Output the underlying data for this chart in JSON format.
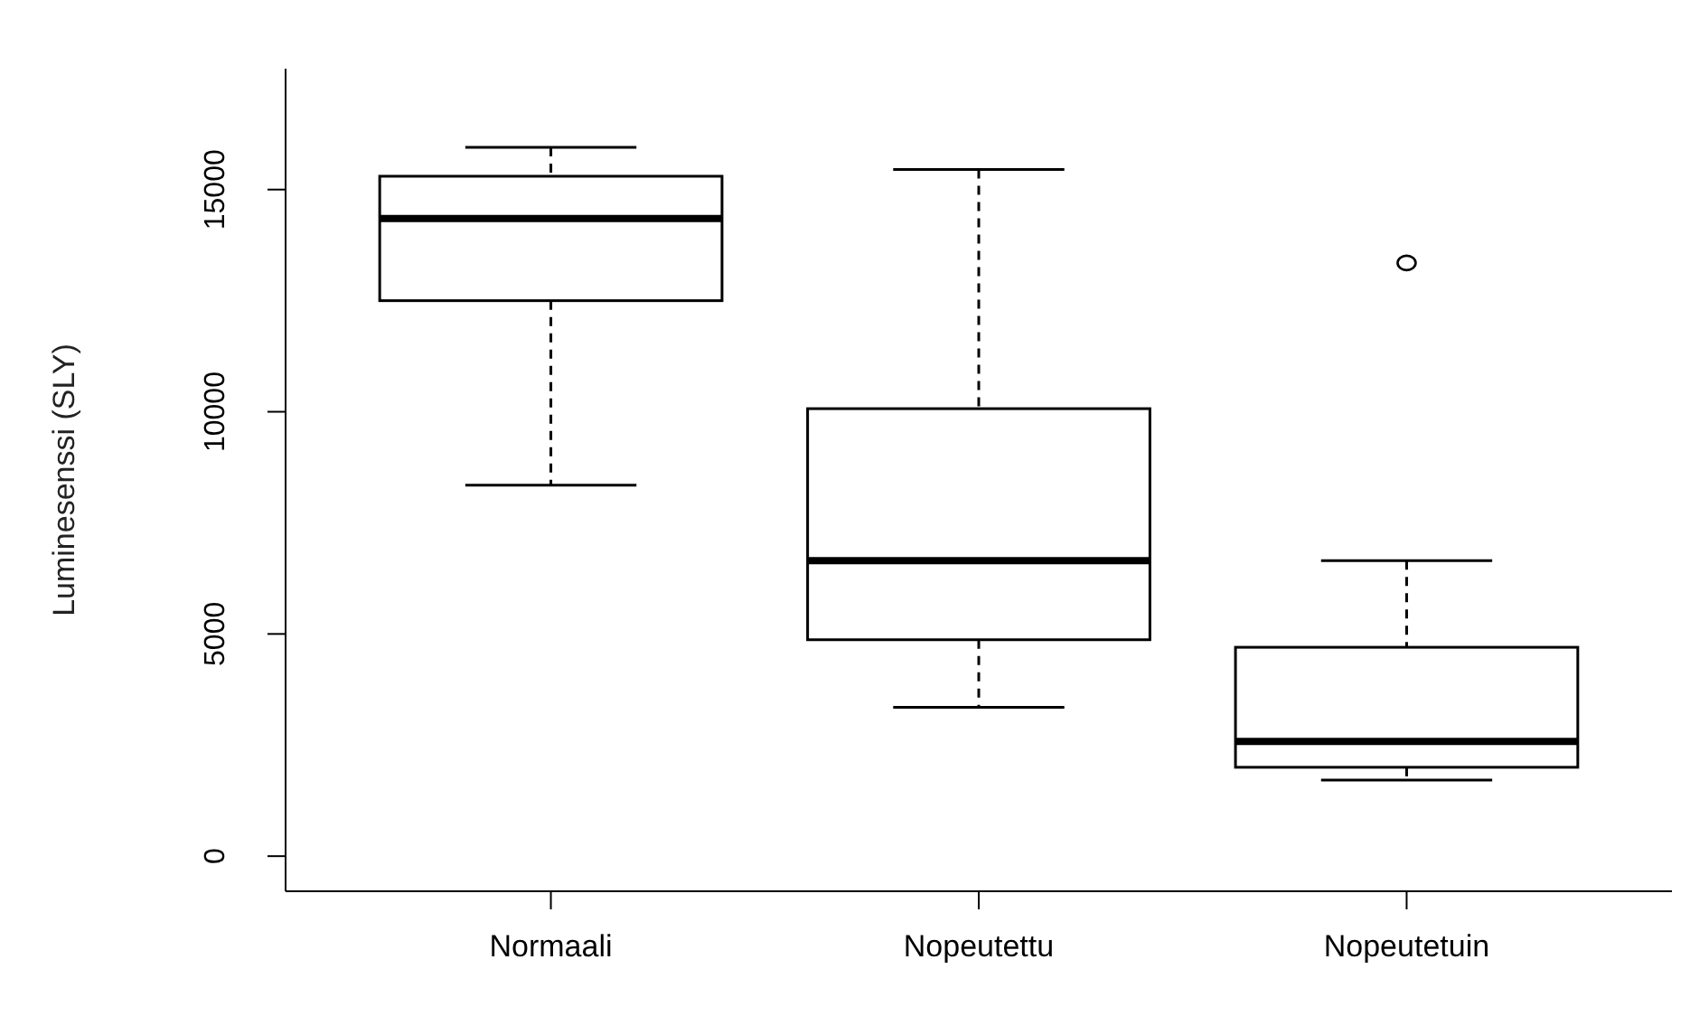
{
  "chart_data": {
    "type": "box",
    "ylabel": "Luminesenssi (SLY)",
    "categories": [
      "Normaali",
      "Nopeutettu",
      "Nopeutetuin"
    ],
    "color": "#000000",
    "boxes": [
      {
        "low": 8350,
        "q1": 12500,
        "median": 14350,
        "q3": 15300,
        "high": 15950
      },
      {
        "low": 3350,
        "q1": 4870,
        "median": 6650,
        "q3": 10070,
        "high": 15450
      },
      {
        "low": 1710,
        "q1": 2000,
        "median": 2580,
        "q3": 4700,
        "high": 6650,
        "outliers": [
          13350
        ]
      }
    ],
    "ylim": [
      -790,
      17720
    ],
    "yticks": [
      0,
      5000,
      10000,
      15000
    ],
    "grid": false
  }
}
